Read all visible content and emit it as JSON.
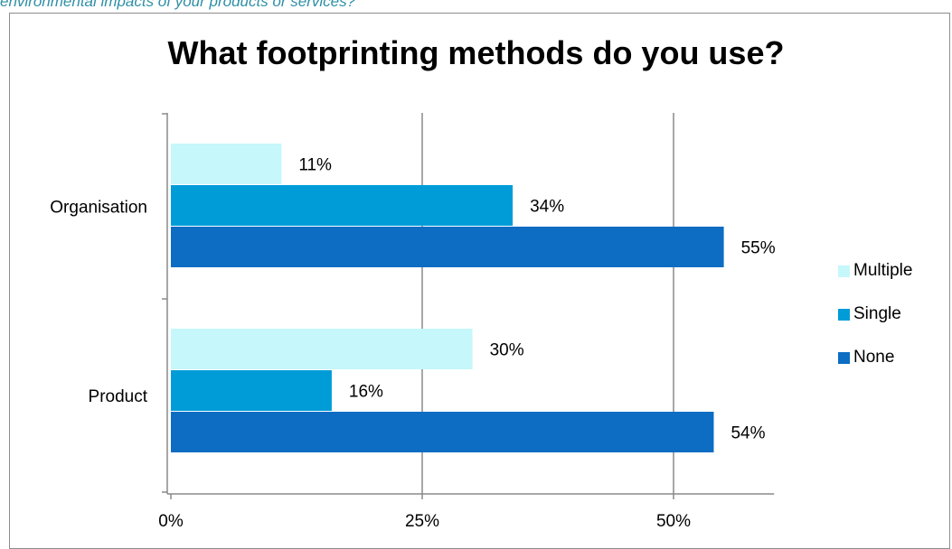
{
  "caption": "environmental impacts of your products or services?",
  "chart_data": {
    "type": "bar",
    "orientation": "horizontal",
    "title": "What footprinting methods do you use?",
    "categories": [
      "Organisation",
      "Product"
    ],
    "series": [
      {
        "name": "Multiple",
        "color": "#c6f7fb",
        "values": [
          11,
          30
        ],
        "labels": [
          "11%",
          "30%"
        ]
      },
      {
        "name": "Single",
        "color": "#009cd8",
        "values": [
          34,
          16
        ],
        "labels": [
          "34%",
          "16%"
        ]
      },
      {
        "name": "None",
        "color": "#0c6dc3",
        "values": [
          55,
          54
        ],
        "labels": [
          "55%",
          "54%"
        ]
      }
    ],
    "x_ticks": [
      0,
      25,
      50
    ],
    "x_tick_labels": [
      "0%",
      "25%",
      "50%"
    ],
    "xlim": [
      0,
      60
    ],
    "grid": true,
    "legend_position": "right"
  }
}
